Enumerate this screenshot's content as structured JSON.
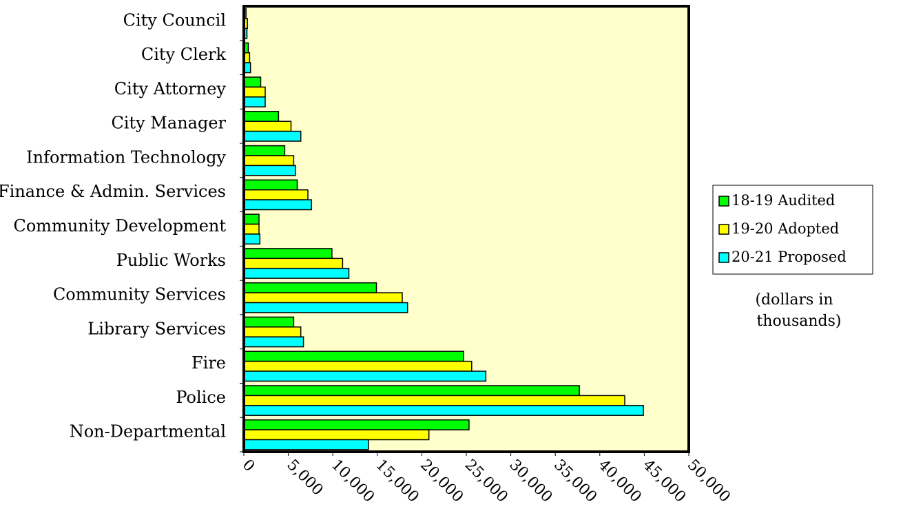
{
  "chart_data": {
    "type": "bar",
    "orientation": "horizontal",
    "categories": [
      "City Council",
      "City Clerk",
      "City Attorney",
      "City Manager",
      "Information Technology",
      "Finance & Admin. Services",
      "Community Development",
      "Public Works",
      "Community Services",
      "Library Services",
      "Fire",
      "Police",
      "Non-Departmental"
    ],
    "series": [
      {
        "name": "18-19 Audited",
        "color": "#00ff00",
        "values": [
          250,
          500,
          1900,
          3900,
          4600,
          6000,
          1700,
          9900,
          14900,
          5600,
          24700,
          37700,
          25300
        ]
      },
      {
        "name": "19-20 Adopted",
        "color": "#ffff00",
        "values": [
          400,
          650,
          2400,
          5300,
          5600,
          7200,
          1700,
          11100,
          17800,
          6400,
          25600,
          42800,
          20800
        ]
      },
      {
        "name": "20-21 Proposed",
        "color": "#00ffff",
        "values": [
          350,
          750,
          2400,
          6400,
          5800,
          7600,
          1800,
          11800,
          18400,
          6700,
          27200,
          44900,
          14000
        ]
      }
    ],
    "xlim": [
      0,
      50000
    ],
    "xticks": [
      0,
      5000,
      10000,
      15000,
      20000,
      25000,
      30000,
      35000,
      40000,
      45000,
      50000
    ],
    "xtick_labels": [
      "0",
      "5,000",
      "10,000",
      "15,000",
      "20,000",
      "25,000",
      "30,000",
      "35,000",
      "40,000",
      "45,000",
      "50,000"
    ],
    "plot_background": "#ffffcc",
    "grid": false,
    "legend_position": "right",
    "note": [
      "(dollars in",
      "thousands)"
    ]
  }
}
